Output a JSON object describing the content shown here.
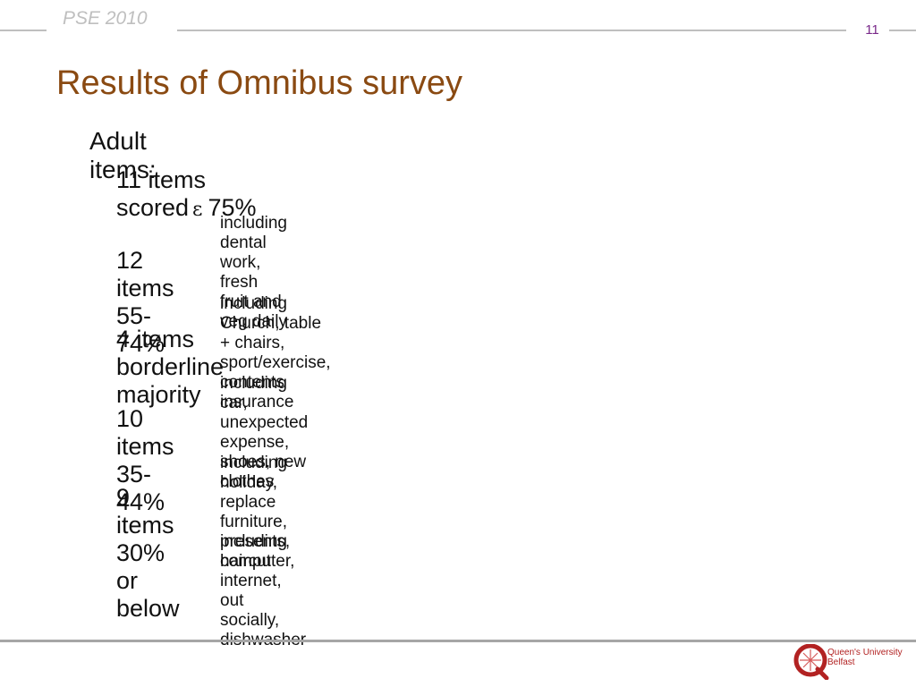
{
  "header": {
    "conference": "PSE 2010",
    "page_number": "11"
  },
  "title": "Results of Omnibus survey",
  "content": {
    "heading": "Adult items:",
    "groups": [
      {
        "label_before": "11 items scored",
        "symbol": "ε",
        "label_after": "75%",
        "detail": "including dental work, fresh fruit and veg daily"
      },
      {
        "label": "12 items 55-74%",
        "detail": "including Church, table + chairs, sport/exercise, contents insurance"
      },
      {
        "label": "4 items borderline majority",
        "detail": "including car, unexpected expense, shoes, new clothes"
      },
      {
        "label": "10 items 35-44%",
        "detail": "including holiday, replace furniture, presents, haircut"
      },
      {
        "label": "9 items 30% or below",
        "detail": "including computer, internet, out socially, dishwasher"
      }
    ]
  },
  "footer": {
    "logo_line1": "Queen's University",
    "logo_line2": "Belfast",
    "logo_icon": "queens-university-crest-icon",
    "accent_color": "#8a4a12"
  }
}
